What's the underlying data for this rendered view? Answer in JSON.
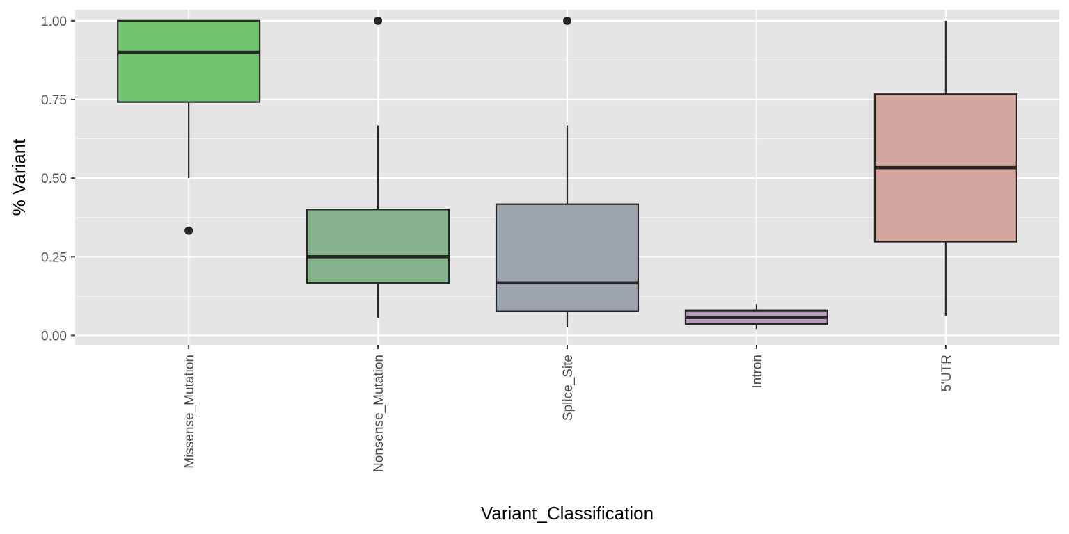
{
  "chart_data": {
    "type": "boxplot",
    "xlabel": "Variant_Classification",
    "ylabel": "% Variant",
    "ylim": [
      -0.03,
      1.035
    ],
    "y_ticks": [
      0.0,
      0.25,
      0.5,
      0.75,
      1.0
    ],
    "y_tick_labels": [
      "0.00",
      "0.25",
      "0.50",
      "0.75",
      "1.00"
    ],
    "grid": true,
    "categories": [
      "Missense_Mutation",
      "Nonsense_Mutation",
      "Splice_Site",
      "Intron",
      "5'UTR"
    ],
    "boxes": [
      {
        "category": "Missense_Mutation",
        "lower_whisker": 0.5,
        "q1": 0.742,
        "median": 0.9,
        "q3": 1.0,
        "upper_whisker": 1.0,
        "outliers": [
          0.333
        ],
        "fill": "#6fc36c"
      },
      {
        "category": "Nonsense_Mutation",
        "lower_whisker": 0.056,
        "q1": 0.167,
        "median": 0.25,
        "q3": 0.4,
        "upper_whisker": 0.667,
        "outliers": [
          1.0
        ],
        "fill": "#86b38d"
      },
      {
        "category": "Splice_Site",
        "lower_whisker": 0.025,
        "q1": 0.077,
        "median": 0.167,
        "q3": 0.417,
        "upper_whisker": 0.667,
        "outliers": [
          1.0
        ],
        "fill": "#9ea4ad"
      },
      {
        "category": "Intron",
        "lower_whisker": 0.02,
        "q1": 0.036,
        "median": 0.057,
        "q3": 0.079,
        "upper_whisker": 0.1,
        "outliers": [],
        "fill": "#b49bb8"
      },
      {
        "category": "5'UTR",
        "lower_whisker": 0.063,
        "q1": 0.298,
        "median": 0.533,
        "q3": 0.767,
        "upper_whisker": 1.0,
        "outliers": [],
        "fill": "#d4a69f"
      }
    ],
    "colors": {
      "panel_background": "#e5e5e5",
      "grid_major": "#ffffff",
      "grid_minor": "#f2f2f2",
      "box_outline": "#262626"
    }
  }
}
